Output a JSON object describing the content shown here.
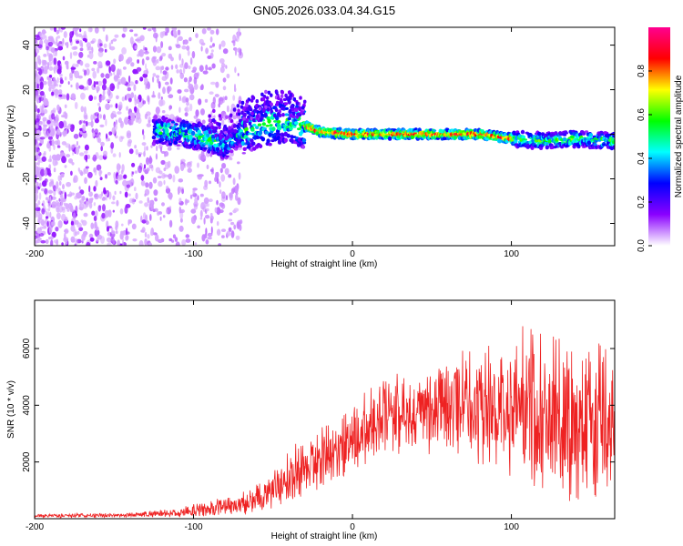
{
  "title": "GN05.2026.033.04.34.G15",
  "chart_data": [
    {
      "type": "heatmap",
      "name": "spectrogram",
      "xlabel": "Height of straight line (km)",
      "ylabel": "Frequency (Hz)",
      "xlim": [
        -200,
        165
      ],
      "ylim": [
        -50,
        48
      ],
      "xticks": [
        -200,
        -100,
        0,
        100
      ],
      "yticks": [
        -40,
        -20,
        0,
        20,
        40
      ],
      "tick_labels_x": [
        "-200",
        "-100",
        "0",
        "100"
      ],
      "tick_labels_y": [
        "-40",
        "-20",
        "0",
        "20",
        "40"
      ],
      "colorbar": {
        "label": "Normalized spectral amplitude",
        "range": [
          0,
          1
        ],
        "ticks": [
          0.0,
          0.2,
          0.4,
          0.6,
          0.8
        ],
        "tick_labels": [
          "0.0",
          "0.2",
          "0.4",
          "0.6",
          "0.8"
        ],
        "colors": [
          "#ffffff",
          "#8a00ff",
          "#0000ff",
          "#00ffff",
          "#00ff00",
          "#ffff00",
          "#ff0000",
          "#ff0090"
        ]
      },
      "features": [
        {
          "region": "noise",
          "x_range": [
            -200,
            -70
          ],
          "freq_range": [
            -50,
            48
          ],
          "amplitude": 0.1
        },
        {
          "region": "wide signal",
          "x_range": [
            -125,
            -30
          ],
          "center_freq": 3,
          "width_hz": 12,
          "amplitude": 0.45
        },
        {
          "region": "narrow signal",
          "x_range": [
            -30,
            100
          ],
          "center_freq": 0,
          "width_hz": 4,
          "amplitude": 0.95
        },
        {
          "region": "broadening signal",
          "x_range": [
            100,
            165
          ],
          "center_freq": -3,
          "width_hz": 8,
          "amplitude": 0.5
        }
      ],
      "track": [
        {
          "x": -130,
          "f": 2
        },
        {
          "x": -110,
          "f": 1
        },
        {
          "x": -90,
          "f": -2
        },
        {
          "x": -80,
          "f": -5
        },
        {
          "x": -70,
          "f": 1
        },
        {
          "x": -55,
          "f": 5
        },
        {
          "x": -45,
          "f": 6
        },
        {
          "x": -35,
          "f": 5
        },
        {
          "x": -20,
          "f": 1
        },
        {
          "x": 0,
          "f": 0
        },
        {
          "x": 20,
          "f": 0
        },
        {
          "x": 50,
          "f": 0
        },
        {
          "x": 80,
          "f": 0
        },
        {
          "x": 100,
          "f": -2
        },
        {
          "x": 120,
          "f": -3
        },
        {
          "x": 140,
          "f": -2
        },
        {
          "x": 165,
          "f": -3
        }
      ]
    },
    {
      "type": "line",
      "name": "snr",
      "color": "#ee2222",
      "xlabel": "Height of straight line (km)",
      "ylabel": "SNR (10 * v/v)",
      "xlim": [
        -200,
        165
      ],
      "ylim": [
        0,
        7700
      ],
      "xticks": [
        -200,
        -100,
        0,
        100
      ],
      "yticks": [
        2000,
        4000,
        6000
      ],
      "tick_labels_x": [
        "-200",
        "-100",
        "0",
        "100"
      ],
      "tick_labels_y": [
        "2000",
        "4000",
        "6000"
      ],
      "envelope": [
        {
          "x": -200,
          "mean": 100,
          "spread": 80
        },
        {
          "x": -150,
          "mean": 110,
          "spread": 90
        },
        {
          "x": -110,
          "mean": 200,
          "spread": 150
        },
        {
          "x": -90,
          "mean": 350,
          "spread": 350
        },
        {
          "x": -70,
          "mean": 500,
          "spread": 400
        },
        {
          "x": -55,
          "mean": 900,
          "spread": 700
        },
        {
          "x": -40,
          "mean": 1400,
          "spread": 1000
        },
        {
          "x": -25,
          "mean": 2000,
          "spread": 1300
        },
        {
          "x": -10,
          "mean": 2500,
          "spread": 1400
        },
        {
          "x": 10,
          "mean": 3200,
          "spread": 1500
        },
        {
          "x": 30,
          "mean": 3800,
          "spread": 1600
        },
        {
          "x": 50,
          "mean": 4000,
          "spread": 1700
        },
        {
          "x": 70,
          "mean": 4100,
          "spread": 1900
        },
        {
          "x": 90,
          "mean": 4000,
          "spread": 2400
        },
        {
          "x": 110,
          "mean": 3900,
          "spread": 3000
        },
        {
          "x": 130,
          "mean": 3600,
          "spread": 3200
        },
        {
          "x": 150,
          "mean": 3300,
          "spread": 3200
        },
        {
          "x": 165,
          "mean": 3000,
          "spread": 3000
        }
      ]
    }
  ]
}
